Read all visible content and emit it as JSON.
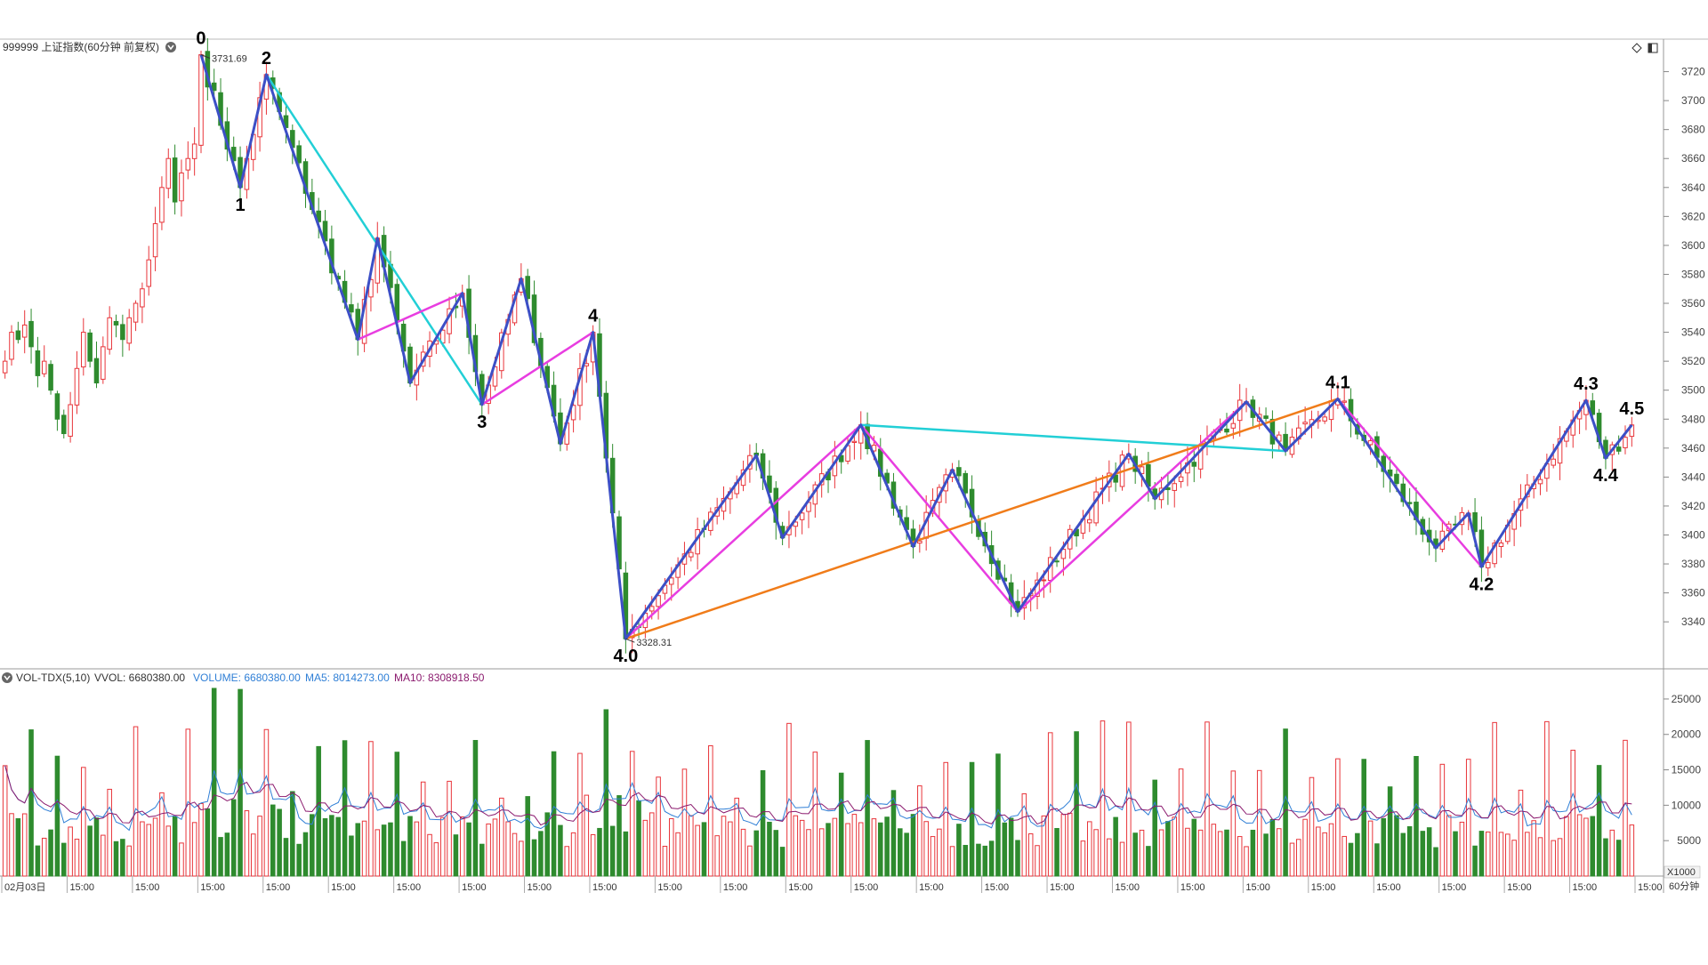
{
  "header": {
    "title": "999999 上证指数(60分钟 前复权)",
    "vol_indicator": "VOL-TDX(5,10)",
    "vvol_label": "VVOL: 6680380.00",
    "volume_label": "VOLUME: 6680380.00",
    "ma5_label": "MA5: 8014273.00",
    "ma10_label": "MA10: 8308918.50"
  },
  "footer": {
    "period_label": "60分钟",
    "vol_unit": "X1000"
  },
  "colors": {
    "up": "#e8353a",
    "down": "#2e8b2e",
    "zigzag": "#3c4fc6",
    "cyan": "#22cfd6",
    "magenta": "#e83de0",
    "orange": "#f07c1a",
    "ma5": "#2f7fd6",
    "ma10": "#8b1a6e",
    "grid": "#dddddd"
  },
  "chart_data": [
    {
      "type": "candlestick",
      "title": "999999 上证指数(60分钟 前复权)",
      "ylim": [
        3310,
        3740
      ],
      "yticks": [
        3340,
        3360,
        3380,
        3400,
        3420,
        3440,
        3460,
        3480,
        3500,
        3520,
        3540,
        3560,
        3580,
        3600,
        3620,
        3640,
        3660,
        3680,
        3700,
        3720
      ],
      "x_tick_labels": [
        "02月03日",
        "15:00",
        "15:00",
        "15:00",
        "15:00",
        "15:00",
        "15:00",
        "15:00",
        "15:00",
        "15:00",
        "15:00",
        "15:00",
        "15:00",
        "15:00",
        "15:00",
        "15:00",
        "15:00",
        "15:00",
        "15:00",
        "15:00",
        "15:00",
        "15:00",
        "15:00",
        "15:00",
        "15:00",
        "15:00"
      ],
      "bar_count": 250,
      "price_annotations": [
        {
          "bar": 30,
          "label": "3731.69"
        },
        {
          "bar": 95,
          "label": "3328.31"
        }
      ],
      "wave_pivots": [
        {
          "label": "0",
          "bar": 30,
          "price": 3731.7
        },
        {
          "label": "1",
          "bar": 36,
          "price": 3640
        },
        {
          "label": "2",
          "bar": 40,
          "price": 3718
        },
        {
          "label": "",
          "bar": 54,
          "price": 3535
        },
        {
          "label": "",
          "bar": 57,
          "price": 3605
        },
        {
          "label": "",
          "bar": 62,
          "price": 3505
        },
        {
          "label": "",
          "bar": 70,
          "price": 3567
        },
        {
          "label": "3",
          "bar": 73,
          "price": 3490
        },
        {
          "label": "",
          "bar": 79,
          "price": 3577
        },
        {
          "label": "",
          "bar": 85,
          "price": 3463
        },
        {
          "label": "4",
          "bar": 90,
          "price": 3540
        },
        {
          "label": "4.0",
          "bar": 95,
          "price": 3328.3
        },
        {
          "label": "",
          "bar": 115,
          "price": 3455
        },
        {
          "label": "",
          "bar": 119,
          "price": 3398
        },
        {
          "label": "",
          "bar": 131,
          "price": 3476
        },
        {
          "label": "",
          "bar": 139,
          "price": 3392
        },
        {
          "label": "",
          "bar": 145,
          "price": 3445
        },
        {
          "label": "",
          "bar": 155,
          "price": 3347
        },
        {
          "label": "",
          "bar": 172,
          "price": 3456
        },
        {
          "label": "",
          "bar": 176,
          "price": 3425
        },
        {
          "label": "",
          "bar": 190,
          "price": 3492
        },
        {
          "label": "",
          "bar": 196,
          "price": 3458
        },
        {
          "label": "4.1",
          "bar": 204,
          "price": 3494
        },
        {
          "label": "",
          "bar": 219,
          "price": 3391
        },
        {
          "label": "",
          "bar": 224,
          "price": 3415
        },
        {
          "label": "4.2",
          "bar": 226,
          "price": 3378
        },
        {
          "label": "4.3",
          "bar": 242,
          "price": 3493
        },
        {
          "label": "4.4",
          "bar": 245,
          "price": 3453
        },
        {
          "label": "4.5",
          "bar": 249,
          "price": 3476
        }
      ],
      "trend_lines": [
        {
          "color": "cyan",
          "from": {
            "bar": 40,
            "price": 3718
          },
          "to": {
            "bar": 73,
            "price": 3490
          }
        },
        {
          "color": "magenta",
          "from": {
            "bar": 54,
            "price": 3535
          },
          "to": {
            "bar": 70,
            "price": 3567
          }
        },
        {
          "color": "magenta",
          "from": {
            "bar": 73,
            "price": 3490
          },
          "to": {
            "bar": 90,
            "price": 3540
          }
        },
        {
          "color": "magenta",
          "from": {
            "bar": 95,
            "price": 3328.3
          },
          "to": {
            "bar": 131,
            "price": 3476
          }
        },
        {
          "color": "magenta",
          "from": {
            "bar": 131,
            "price": 3476
          },
          "to": {
            "bar": 155,
            "price": 3347
          }
        },
        {
          "color": "magenta",
          "from": {
            "bar": 155,
            "price": 3347
          },
          "to": {
            "bar": 190,
            "price": 3492
          }
        },
        {
          "color": "magenta",
          "from": {
            "bar": 204,
            "price": 3494
          },
          "to": {
            "bar": 226,
            "price": 3378
          }
        },
        {
          "color": "cyan",
          "from": {
            "bar": 131,
            "price": 3476
          },
          "to": {
            "bar": 196,
            "price": 3458
          }
        },
        {
          "color": "orange",
          "from": {
            "bar": 95,
            "price": 3328.3
          },
          "to": {
            "bar": 204,
            "price": 3494
          }
        }
      ]
    },
    {
      "type": "bar",
      "title": "VOL-TDX(5,10)",
      "ylim": [
        0,
        27000
      ],
      "yticks": [
        5000,
        10000,
        15000,
        20000,
        25000
      ],
      "unit": "X1000",
      "series": [
        {
          "name": "VOLUME",
          "values": "one bar per candle"
        },
        {
          "name": "MA5",
          "values": "5-bar moving average"
        },
        {
          "name": "MA10",
          "values": "10-bar moving average"
        }
      ]
    }
  ]
}
